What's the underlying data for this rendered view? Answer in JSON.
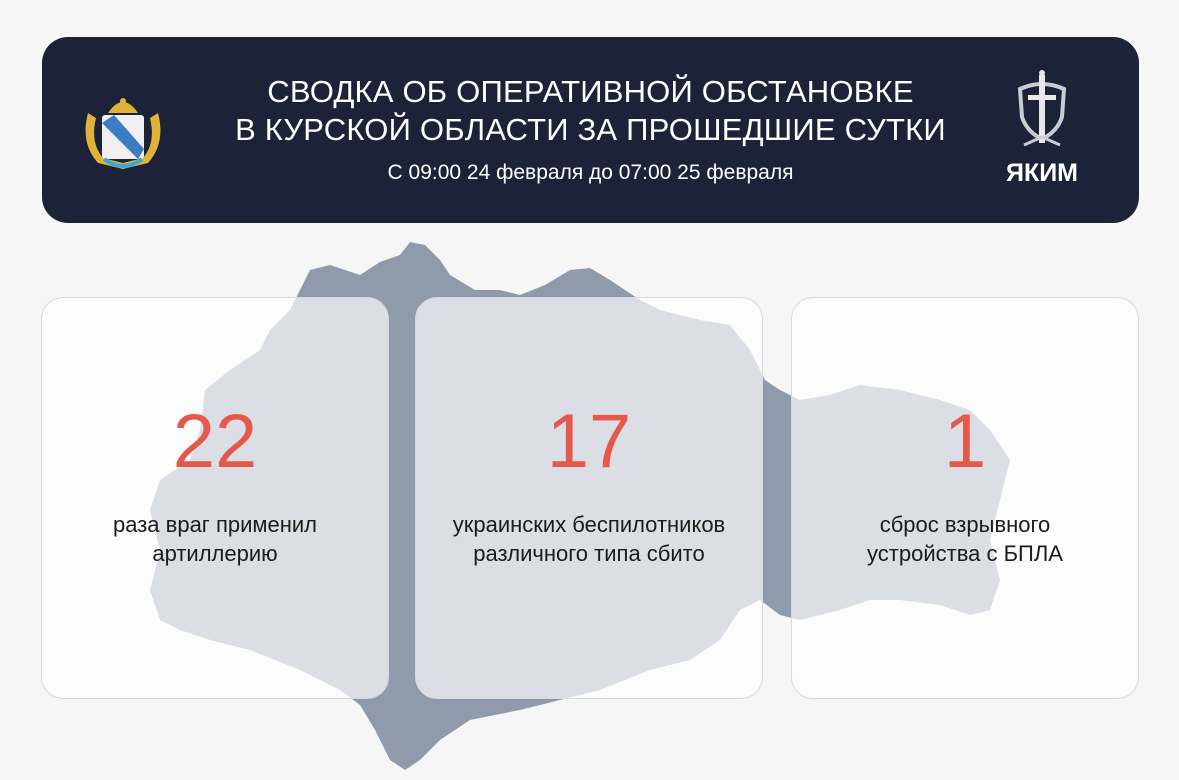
{
  "header": {
    "title_line1": "СВОДКА ОБ ОПЕРАТИВНОЙ ОБСТАНОВКЕ",
    "title_line2": "В КУРСКОЙ ОБЛАСТИ ЗА ПРОШЕДШИЕ СУТКИ",
    "subtitle": "С 09:00 24 февраля до 07:00 25 февраля",
    "logo_text": "ЯКИМ"
  },
  "colors": {
    "header_bg": "#1c2338",
    "accent_number": "#e5594c",
    "map": "#8f9aab"
  },
  "stats": [
    {
      "value": "22",
      "line1": "раза враг применил",
      "line2": "артиллерию"
    },
    {
      "value": "17",
      "line1": "украинских беспилотников",
      "line2": "различного типа сбито"
    },
    {
      "value": "1",
      "line1": "сброс взрывного",
      "line2": "устройства с БПЛА"
    }
  ]
}
